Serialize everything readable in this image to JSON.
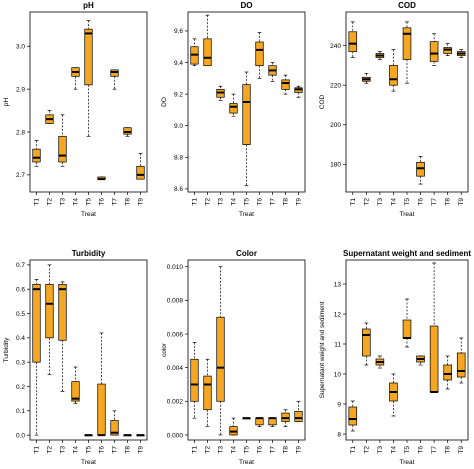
{
  "figure": {
    "box_fill": "#f5a623",
    "median_color": "#000000"
  },
  "chart_data": [
    {
      "type": "boxplot",
      "title": "pH",
      "xlabel": "Treat",
      "ylabel": "pH",
      "ylim": [
        2.66,
        3.08
      ],
      "yticks": [
        2.7,
        2.8,
        2.9,
        3.0
      ],
      "ytick_labels": [
        "2.7",
        "2.8",
        "2.9",
        "3.0"
      ],
      "categories": [
        "T1",
        "T2",
        "T3",
        "T4",
        "T5",
        "T6",
        "T7",
        "T8",
        "T9"
      ],
      "boxes": [
        {
          "min": 2.72,
          "q1": 2.73,
          "median": 2.74,
          "q3": 2.76,
          "max": 2.78
        },
        {
          "min": 2.82,
          "q1": 2.82,
          "median": 2.83,
          "q3": 2.84,
          "max": 2.85
        },
        {
          "min": 2.72,
          "q1": 2.73,
          "median": 2.745,
          "q3": 2.79,
          "max": 2.84
        },
        {
          "min": 2.9,
          "q1": 2.93,
          "median": 2.94,
          "q3": 2.95,
          "max": 2.95
        },
        {
          "min": 2.79,
          "q1": 2.91,
          "median": 3.03,
          "q3": 3.04,
          "max": 3.06
        },
        {
          "min": 2.69,
          "q1": 2.69,
          "median": 2.69,
          "q3": 2.695,
          "max": 2.695
        },
        {
          "min": 2.9,
          "q1": 2.93,
          "median": 2.94,
          "q3": 2.945,
          "max": 2.945
        },
        {
          "min": 2.79,
          "q1": 2.795,
          "median": 2.8,
          "q3": 2.81,
          "max": 2.81
        },
        {
          "min": 2.69,
          "q1": 2.69,
          "median": 2.7,
          "q3": 2.72,
          "max": 2.75
        }
      ]
    },
    {
      "type": "boxplot",
      "title": "DO",
      "xlabel": "Treat",
      "ylabel": "DO",
      "ylim": [
        8.58,
        9.72
      ],
      "yticks": [
        8.6,
        8.8,
        9.0,
        9.2,
        9.4,
        9.6
      ],
      "ytick_labels": [
        "8.6",
        "8.8",
        "9.0",
        "9.2",
        "9.4",
        "9.6"
      ],
      "categories": [
        "T1",
        "T2",
        "T3",
        "T4",
        "T5",
        "T6",
        "T7",
        "T8",
        "T9"
      ],
      "boxes": [
        {
          "min": 9.38,
          "q1": 9.39,
          "median": 9.45,
          "q3": 9.5,
          "max": 9.55
        },
        {
          "min": 9.38,
          "q1": 9.38,
          "median": 9.43,
          "q3": 9.55,
          "max": 9.7
        },
        {
          "min": 9.16,
          "q1": 9.18,
          "median": 9.21,
          "q3": 9.23,
          "max": 9.25
        },
        {
          "min": 9.06,
          "q1": 9.08,
          "median": 9.12,
          "q3": 9.14,
          "max": 9.2
        },
        {
          "min": 8.62,
          "q1": 8.88,
          "median": 9.15,
          "q3": 9.26,
          "max": 9.34
        },
        {
          "min": 9.3,
          "q1": 9.38,
          "median": 9.48,
          "q3": 9.53,
          "max": 9.59
        },
        {
          "min": 9.28,
          "q1": 9.32,
          "median": 9.35,
          "q3": 9.38,
          "max": 9.4
        },
        {
          "min": 9.2,
          "q1": 9.23,
          "median": 9.27,
          "q3": 9.29,
          "max": 9.32
        },
        {
          "min": 9.18,
          "q1": 9.21,
          "median": 9.23,
          "q3": 9.24,
          "max": 9.25
        }
      ]
    },
    {
      "type": "boxplot",
      "title": "COD",
      "xlabel": "Treat",
      "ylabel": "COD",
      "ylim": [
        166,
        257
      ],
      "yticks": [
        180,
        200,
        220,
        240
      ],
      "ytick_labels": [
        "180",
        "200",
        "220",
        "240"
      ],
      "categories": [
        "T1",
        "T2",
        "T3",
        "T4",
        "T5",
        "T6",
        "T7",
        "T8",
        "T9"
      ],
      "boxes": [
        {
          "min": 234,
          "q1": 237,
          "median": 241,
          "q3": 247,
          "max": 252
        },
        {
          "min": 221,
          "q1": 222,
          "median": 223,
          "q3": 224,
          "max": 226
        },
        {
          "min": 233,
          "q1": 234,
          "median": 235,
          "q3": 236,
          "max": 237
        },
        {
          "min": 217,
          "q1": 220,
          "median": 223,
          "q3": 230,
          "max": 238
        },
        {
          "min": 221,
          "q1": 233,
          "median": 246,
          "q3": 249,
          "max": 252
        },
        {
          "min": 170,
          "q1": 174,
          "median": 178,
          "q3": 181,
          "max": 184
        },
        {
          "min": 230,
          "q1": 232,
          "median": 236,
          "q3": 242,
          "max": 246
        },
        {
          "min": 235,
          "q1": 236,
          "median": 238,
          "q3": 239,
          "max": 241
        },
        {
          "min": 234,
          "q1": 235,
          "median": 236,
          "q3": 237,
          "max": 238
        }
      ]
    },
    {
      "type": "boxplot",
      "title": "Turbidity",
      "xlabel": "Treat",
      "ylabel": "Turbidity",
      "ylim": [
        -0.02,
        0.72
      ],
      "yticks": [
        0.0,
        0.1,
        0.2,
        0.3,
        0.4,
        0.5,
        0.6,
        0.7
      ],
      "ytick_labels": [
        "0.0",
        "0.1",
        "0.2",
        "0.3",
        "0.4",
        "0.5",
        "0.6",
        "0.7"
      ],
      "categories": [
        "T1",
        "T2",
        "T3",
        "T4",
        "T5",
        "T6",
        "T7",
        "T8",
        "T9"
      ],
      "boxes": [
        {
          "min": 0.0,
          "q1": 0.3,
          "median": 0.6,
          "q3": 0.62,
          "max": 0.64
        },
        {
          "min": 0.25,
          "q1": 0.4,
          "median": 0.54,
          "q3": 0.62,
          "max": 0.7
        },
        {
          "min": 0.18,
          "q1": 0.39,
          "median": 0.6,
          "q3": 0.62,
          "max": 0.63
        },
        {
          "min": 0.13,
          "q1": 0.14,
          "median": 0.15,
          "q3": 0.22,
          "max": 0.28
        },
        {
          "min": 0.0,
          "q1": 0.0,
          "median": 0.0,
          "q3": 0.0,
          "max": 0.0
        },
        {
          "min": 0.0,
          "q1": 0.0,
          "median": 0.0,
          "q3": 0.21,
          "max": 0.42
        },
        {
          "min": 0.0,
          "q1": 0.0,
          "median": 0.01,
          "q3": 0.06,
          "max": 0.1
        },
        {
          "min": 0.0,
          "q1": 0.0,
          "median": 0.0,
          "q3": 0.0,
          "max": 0.0
        },
        {
          "min": 0.0,
          "q1": 0.0,
          "median": 0.0,
          "q3": 0.0,
          "max": 0.0
        }
      ]
    },
    {
      "type": "boxplot",
      "title": "Color",
      "xlabel": "Treat",
      "ylabel": "color",
      "ylim": [
        -0.0003,
        0.0104
      ],
      "yticks": [
        0.0,
        0.002,
        0.004,
        0.006,
        0.008,
        0.01
      ],
      "ytick_labels": [
        "0.000",
        "0.002",
        "0.004",
        "0.006",
        "0.008",
        "0.010"
      ],
      "categories": [
        "T1",
        "T2",
        "T3",
        "T4",
        "T5",
        "T6",
        "T7",
        "T8",
        "T9"
      ],
      "boxes": [
        {
          "min": 0.001,
          "q1": 0.002,
          "median": 0.003,
          "q3": 0.0045,
          "max": 0.0055
        },
        {
          "min": 0.0005,
          "q1": 0.0015,
          "median": 0.003,
          "q3": 0.0035,
          "max": 0.0045
        },
        {
          "min": 0.0,
          "q1": 0.002,
          "median": 0.004,
          "q3": 0.007,
          "max": 0.01
        },
        {
          "min": 0.0,
          "q1": 0.0,
          "median": 0.0002,
          "q3": 0.0005,
          "max": 0.001
        },
        {
          "min": 0.001,
          "q1": 0.001,
          "median": 0.001,
          "q3": 0.001,
          "max": 0.001
        },
        {
          "min": 0.0005,
          "q1": 0.0006,
          "median": 0.001,
          "q3": 0.001,
          "max": 0.001
        },
        {
          "min": 0.0005,
          "q1": 0.0006,
          "median": 0.001,
          "q3": 0.001,
          "max": 0.001
        },
        {
          "min": 0.0005,
          "q1": 0.0008,
          "median": 0.001,
          "q3": 0.0013,
          "max": 0.0015
        },
        {
          "min": 0.0008,
          "q1": 0.0008,
          "median": 0.001,
          "q3": 0.0014,
          "max": 0.002
        }
      ]
    },
    {
      "type": "boxplot",
      "title": "Supernatant weight and sediment",
      "xlabel": "Treat",
      "ylabel": "Supernatant weight and sediment",
      "ylim": [
        7.8,
        13.8
      ],
      "yticks": [
        8,
        9,
        10,
        11,
        12,
        13
      ],
      "ytick_labels": [
        "8",
        "9",
        "10",
        "11",
        "12",
        "13"
      ],
      "categories": [
        "T1",
        "T2",
        "T3",
        "T4",
        "T5",
        "T6",
        "T7",
        "T8",
        "T9"
      ],
      "boxes": [
        {
          "min": 8.1,
          "q1": 8.3,
          "median": 8.5,
          "q3": 8.9,
          "max": 9.1
        },
        {
          "min": 10.3,
          "q1": 10.6,
          "median": 11.3,
          "q3": 11.5,
          "max": 11.7
        },
        {
          "min": 10.2,
          "q1": 10.3,
          "median": 10.4,
          "q3": 10.5,
          "max": 10.6
        },
        {
          "min": 8.6,
          "q1": 9.1,
          "median": 9.4,
          "q3": 9.7,
          "max": 10.0
        },
        {
          "min": 10.9,
          "q1": 11.2,
          "median": 11.2,
          "q3": 11.8,
          "max": 12.5
        },
        {
          "min": 10.3,
          "q1": 10.4,
          "median": 10.5,
          "q3": 10.6,
          "max": 10.6
        },
        {
          "min": 9.4,
          "q1": 9.4,
          "median": 9.4,
          "q3": 11.6,
          "max": 13.7
        },
        {
          "min": 9.5,
          "q1": 9.8,
          "median": 10.0,
          "q3": 10.3,
          "max": 10.6
        },
        {
          "min": 9.7,
          "q1": 9.9,
          "median": 10.1,
          "q3": 10.7,
          "max": 11.2
        }
      ]
    }
  ]
}
